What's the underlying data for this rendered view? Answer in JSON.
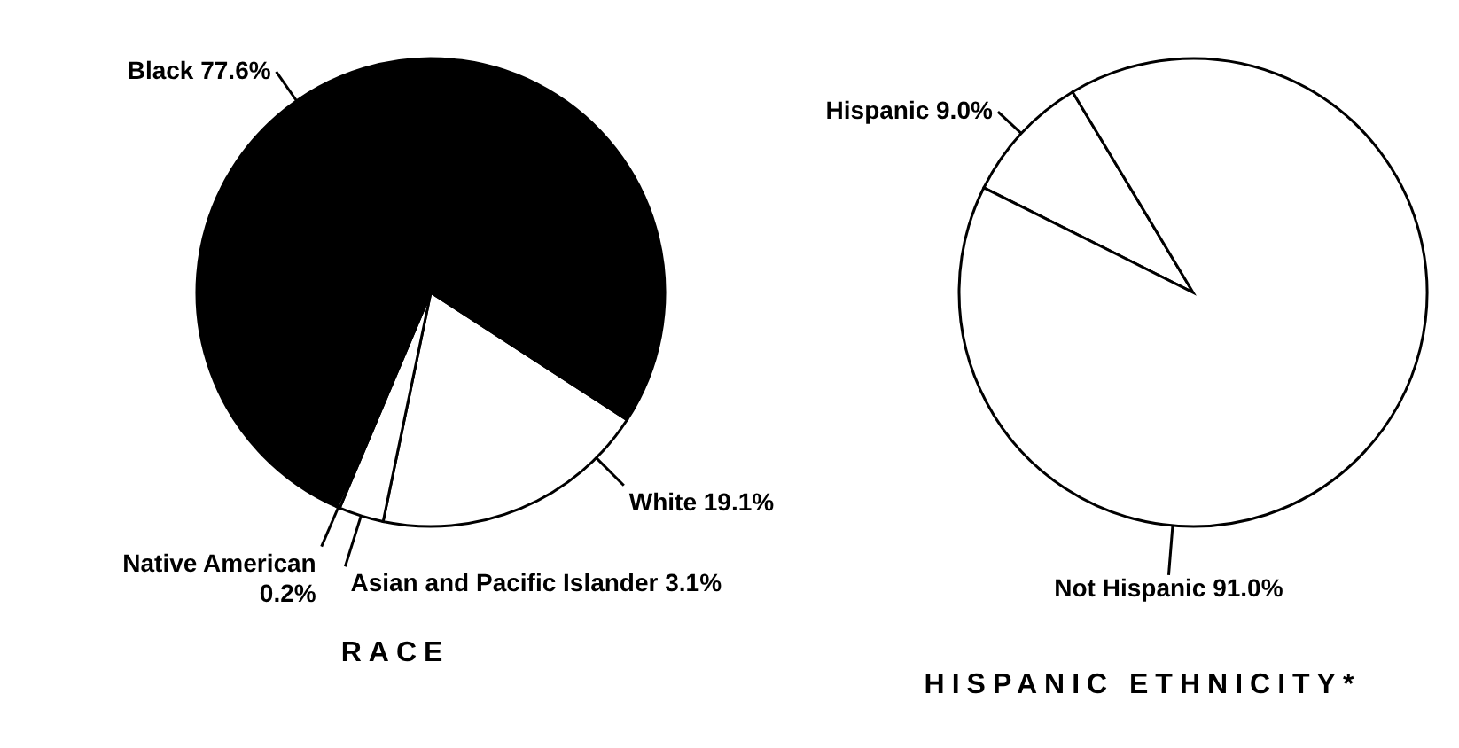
{
  "chart_data": [
    {
      "type": "pie",
      "title": "RACE",
      "categories": [
        "White",
        "Asian and Pacific Islander",
        "Native American",
        "Black"
      ],
      "values": [
        19.1,
        3.1,
        0.2,
        77.6
      ],
      "value_labels": [
        "19.1%",
        "3.1%",
        "0.2%",
        "77.6%"
      ],
      "colors": [
        "#ffffff",
        "#ffffff",
        "#ffffff",
        "#000000"
      ]
    },
    {
      "type": "pie",
      "title": "HISPANIC ETHNICITY*",
      "categories": [
        "Hispanic",
        "Not Hispanic"
      ],
      "values": [
        9.0,
        91.0
      ],
      "value_labels": [
        "9.0%",
        "91.0%"
      ],
      "colors": [
        "#ffffff",
        "#ffffff"
      ]
    }
  ]
}
